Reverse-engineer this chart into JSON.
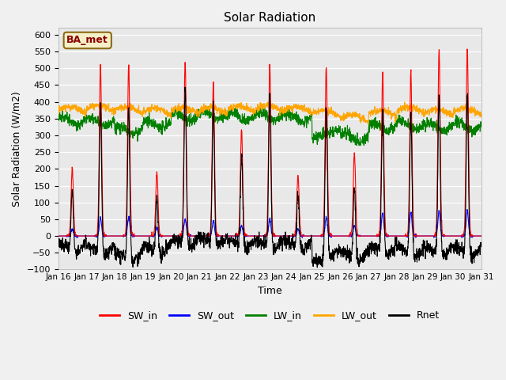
{
  "title": "Solar Radiation",
  "ylabel": "Solar Radiation (W/m2)",
  "xlabel": "Time",
  "ylim": [
    -100,
    620
  ],
  "yticks": [
    -100,
    -50,
    0,
    50,
    100,
    150,
    200,
    250,
    300,
    350,
    400,
    450,
    500,
    550,
    600
  ],
  "fig_bg_color": "#f0f0f0",
  "plot_bg_color": "#e8e8e8",
  "legend_labels": [
    "SW_in",
    "SW_out",
    "LW_in",
    "LW_out",
    "Rnet"
  ],
  "legend_colors": [
    "red",
    "blue",
    "green",
    "orange",
    "black"
  ],
  "station_label": "BA_met",
  "x_tick_labels": [
    "Jan 16",
    "Jan 17",
    "Jan 18",
    "Jan 19",
    "Jan 20",
    "Jan 21",
    "Jan 22",
    "Jan 23",
    "Jan 24",
    "Jan 25",
    "Jan 26",
    "Jan 27",
    "Jan 28",
    "Jan 29",
    "Jan 30",
    "Jan 31"
  ],
  "n_days": 15,
  "n_points_per_day": 144
}
